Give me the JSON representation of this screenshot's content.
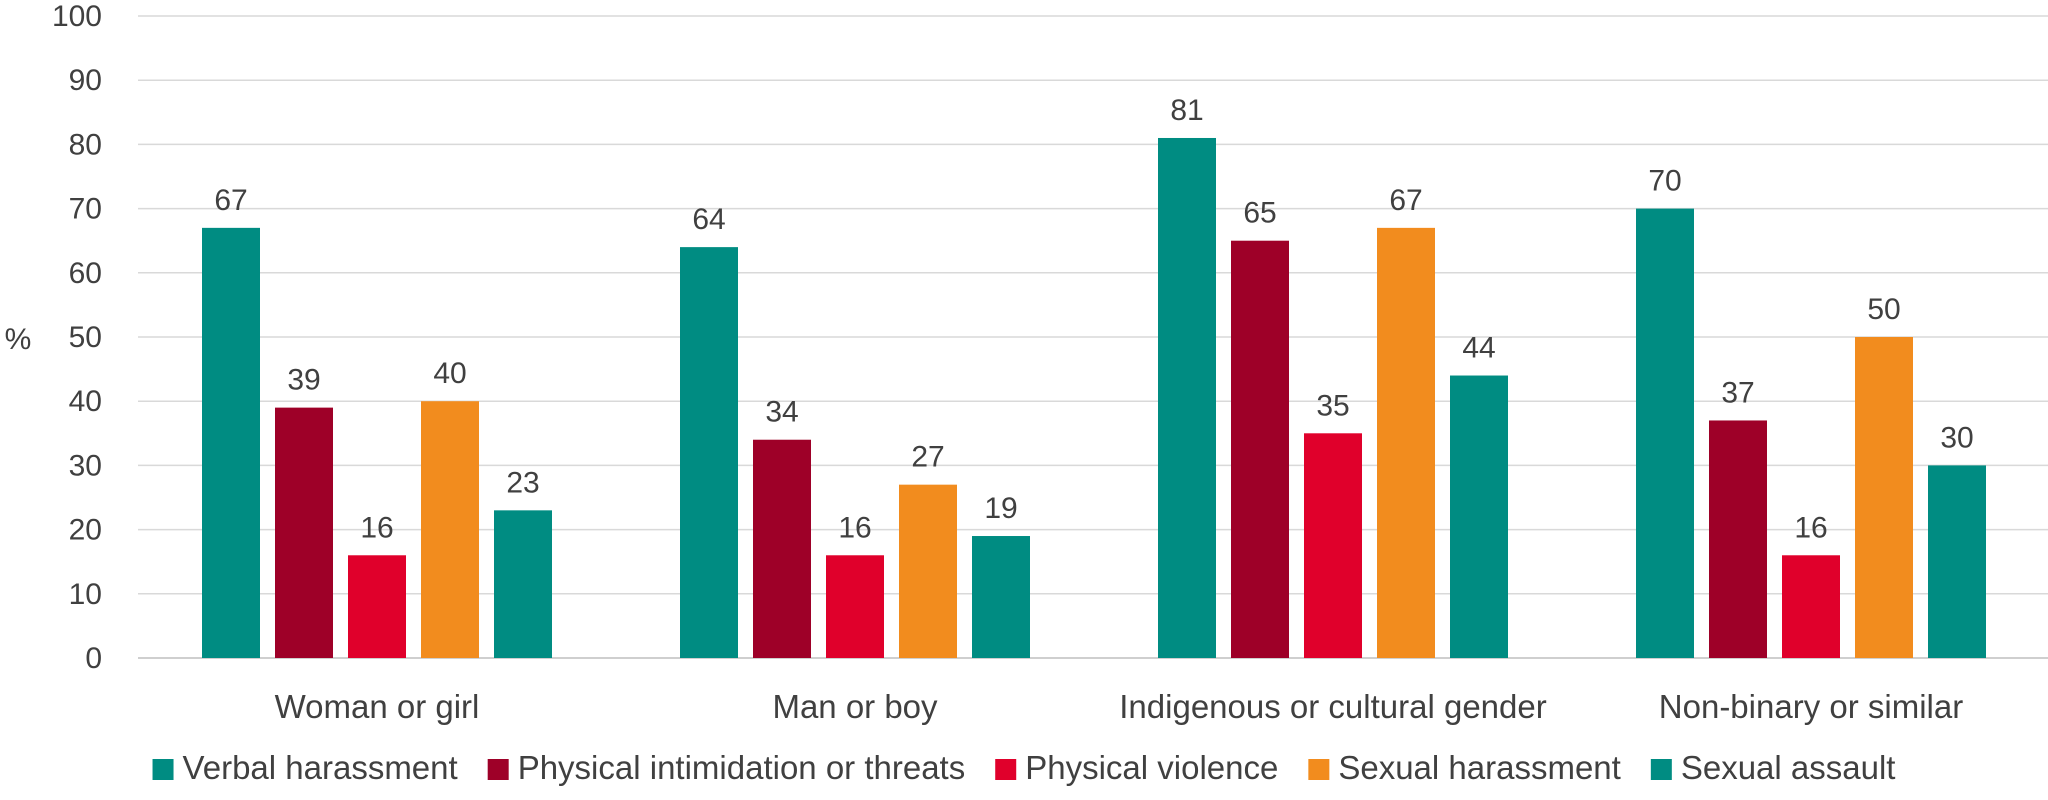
{
  "chart_data": {
    "type": "bar",
    "title": "",
    "xlabel": "",
    "ylabel": "%",
    "ylim": [
      0,
      100
    ],
    "yticks": [
      0,
      10,
      20,
      30,
      40,
      50,
      60,
      70,
      80,
      90,
      100
    ],
    "grid": true,
    "legend_position": "bottom",
    "categories": [
      "Woman or girl",
      "Man or boy",
      "Indigenous or cultural gender",
      "Non-binary or similar"
    ],
    "series": [
      {
        "name": "Verbal harassment",
        "color": "#008C82",
        "values": [
          67,
          64,
          81,
          70
        ]
      },
      {
        "name": "Physical intimidation or threats",
        "color": "#9E0028",
        "values": [
          39,
          34,
          65,
          37
        ]
      },
      {
        "name": "Physical violence",
        "color": "#E0002B",
        "values": [
          16,
          16,
          35,
          16
        ]
      },
      {
        "name": "Sexual harassment",
        "color": "#F28C1E",
        "values": [
          40,
          27,
          67,
          50
        ]
      },
      {
        "name": "Sexual assault",
        "color": "#008C82",
        "values": [
          23,
          19,
          44,
          30
        ]
      }
    ]
  }
}
